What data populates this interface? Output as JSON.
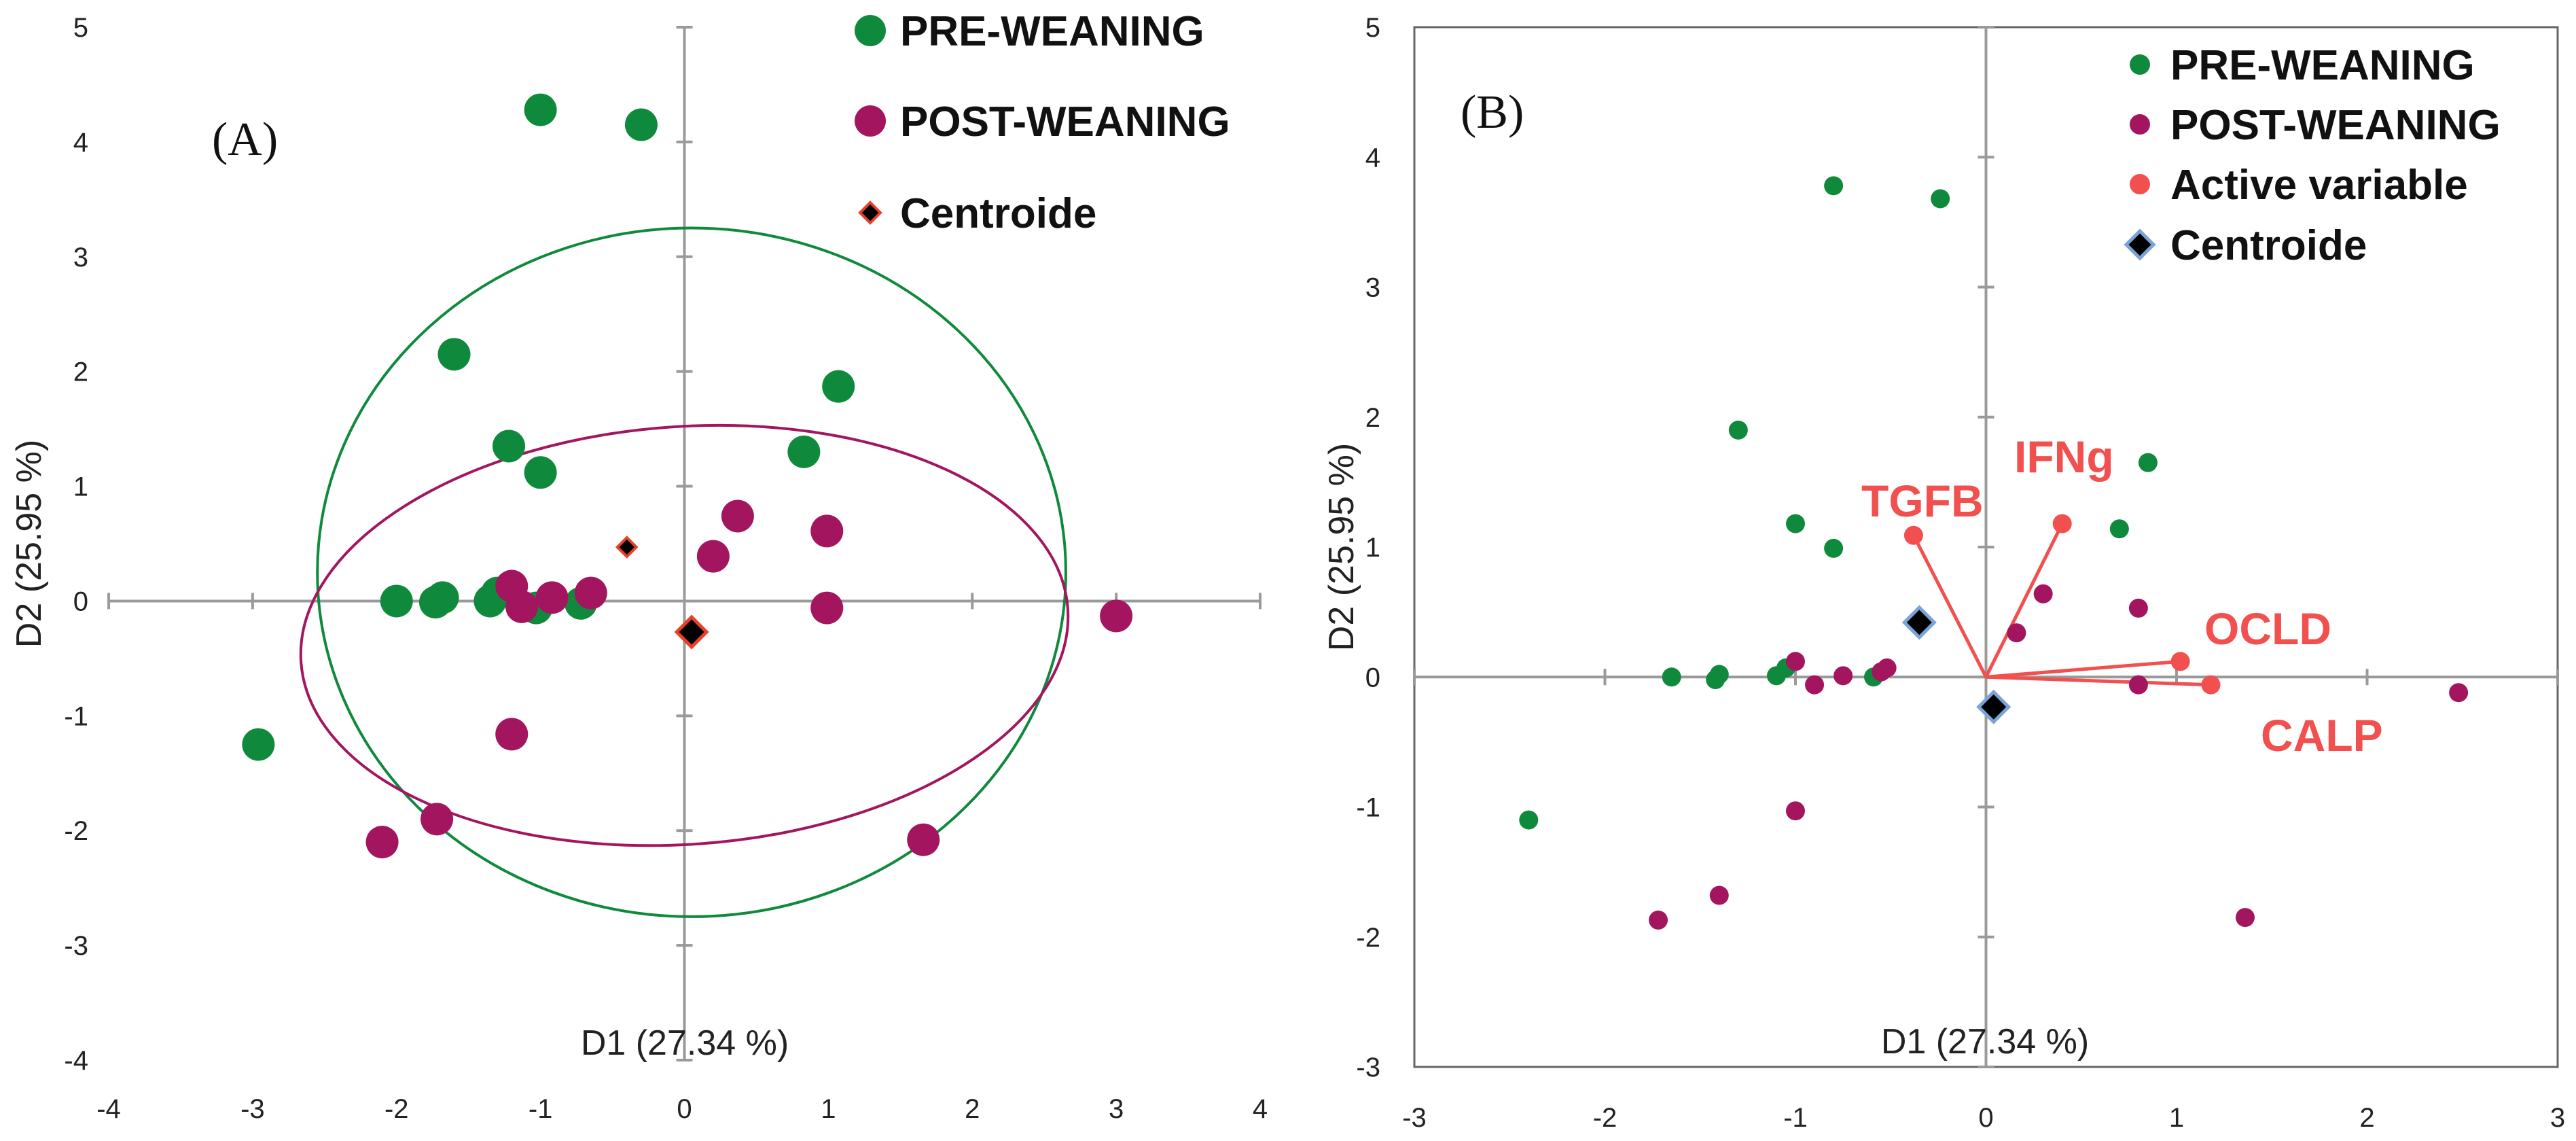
{
  "figure": {
    "colors": {
      "pre": "#0f8a3c",
      "post": "#a3165f",
      "active": "#f24f4f",
      "axis": "#9a9a9a",
      "centroide_fill": "#000000",
      "centroide_edge_a": "#e8402a",
      "centroide_edge_b": "#7aa3d6"
    }
  },
  "chart_data": [
    {
      "type": "scatter",
      "panel_label": "(A)",
      "xlabel": "D1 (27.34 %)",
      "ylabel": "D2 (25.95 %)",
      "xlim": [
        -4,
        4
      ],
      "ylim": [
        -4,
        5
      ],
      "xticks": [
        -4,
        -3,
        -2,
        -1,
        0,
        1,
        2,
        3,
        4
      ],
      "yticks": [
        -4,
        -3,
        -2,
        -1,
        0,
        1,
        2,
        3,
        4,
        5
      ],
      "legend": [
        "PRE-WEANING",
        "POST-WEANING",
        "Centroide"
      ],
      "series": [
        {
          "name": "PRE-WEANING",
          "points": [
            [
              -1.0,
              4.28
            ],
            [
              -0.3,
              4.15
            ],
            [
              -1.6,
              2.15
            ],
            [
              -1.22,
              1.35
            ],
            [
              -1.0,
              1.12
            ],
            [
              1.07,
              1.87
            ],
            [
              0.83,
              1.3
            ],
            [
              -2.96,
              -1.25
            ],
            [
              -2.0,
              0.0
            ],
            [
              -1.73,
              -0.01
            ],
            [
              -1.68,
              0.03
            ],
            [
              -1.35,
              0.0
            ],
            [
              -1.3,
              0.07
            ],
            [
              -0.72,
              -0.02
            ],
            [
              -1.03,
              -0.06
            ]
          ]
        },
        {
          "name": "POST-WEANING",
          "points": [
            [
              0.37,
              0.74
            ],
            [
              0.99,
              0.61
            ],
            [
              0.2,
              0.39
            ],
            [
              -1.2,
              0.13
            ],
            [
              -1.13,
              -0.05
            ],
            [
              -0.92,
              0.03
            ],
            [
              -0.65,
              0.07
            ],
            [
              0.99,
              -0.06
            ],
            [
              3.0,
              -0.13
            ],
            [
              -1.2,
              -1.16
            ],
            [
              -1.72,
              -1.9
            ],
            [
              -2.1,
              -2.1
            ],
            [
              1.66,
              -2.08
            ]
          ]
        }
      ],
      "centroids": [
        [
          -0.4,
          0.47
        ],
        [
          0.05,
          -0.27
        ]
      ],
      "ellipses": [
        {
          "group": "PRE-WEANING",
          "center": [
            0.05,
            0.25
          ],
          "rx": 2.6,
          "ry": 3.0,
          "angle_deg": 0
        },
        {
          "group": "POST-WEANING",
          "center": [
            0.0,
            -0.3
          ],
          "rx": 2.67,
          "ry": 1.82,
          "angle_deg": 4
        }
      ]
    },
    {
      "type": "scatter",
      "panel_label": "(B)",
      "xlabel": "D1 (27.34 %)",
      "ylabel": "D2 (25.95 %)",
      "xlim": [
        -3,
        3
      ],
      "ylim": [
        -3,
        5
      ],
      "xticks": [
        -3,
        -2,
        -1,
        0,
        1,
        2,
        3
      ],
      "yticks": [
        -3,
        -2,
        -1,
        0,
        1,
        2,
        3,
        4,
        5
      ],
      "legend": [
        "PRE-WEANING",
        "POST-WEANING",
        "Active variable",
        "Centroide"
      ],
      "series": [
        {
          "name": "PRE-WEANING",
          "points": [
            [
              -0.8,
              3.78
            ],
            [
              -0.24,
              3.68
            ],
            [
              -1.3,
              1.9
            ],
            [
              0.85,
              1.65
            ],
            [
              -1.0,
              1.18
            ],
            [
              -0.8,
              0.99
            ],
            [
              0.7,
              1.14
            ],
            [
              -2.4,
              -1.1
            ],
            [
              -1.65,
              0.0
            ],
            [
              -1.42,
              -0.02
            ],
            [
              -1.4,
              0.02
            ],
            [
              -1.1,
              0.01
            ],
            [
              -1.05,
              0.07
            ],
            [
              -0.59,
              0.0
            ]
          ]
        },
        {
          "name": "POST-WEANING",
          "points": [
            [
              0.3,
              0.64
            ],
            [
              0.8,
              0.53
            ],
            [
              0.16,
              0.34
            ],
            [
              -1.0,
              0.12
            ],
            [
              -0.9,
              -0.06
            ],
            [
              -0.75,
              0.01
            ],
            [
              -0.55,
              0.04
            ],
            [
              -0.52,
              0.07
            ],
            [
              0.8,
              -0.06
            ],
            [
              2.48,
              -0.12
            ],
            [
              -1.0,
              -1.03
            ],
            [
              -1.4,
              -1.68
            ],
            [
              -1.72,
              -1.87
            ],
            [
              1.36,
              -1.85
            ]
          ]
        }
      ],
      "centroids": [
        [
          -0.35,
          0.42
        ],
        [
          0.04,
          -0.23
        ]
      ],
      "active_variables": [
        {
          "name": "TGFB",
          "x": -0.38,
          "y": 1.09
        },
        {
          "name": "IFNg",
          "x": 0.4,
          "y": 1.18
        },
        {
          "name": "OCLD",
          "x": 1.02,
          "y": 0.12
        },
        {
          "name": "CALP",
          "x": 1.18,
          "y": -0.06
        }
      ]
    }
  ]
}
